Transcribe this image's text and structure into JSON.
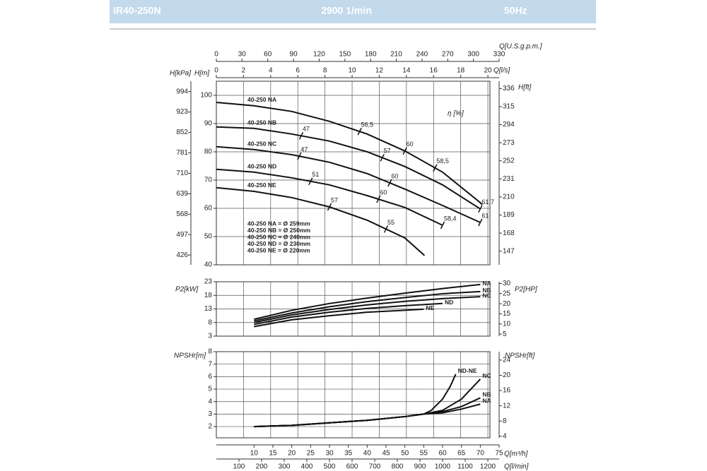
{
  "header": {
    "model": "IR40-250N",
    "speed": "2900 1/min",
    "frequency": "50Hz"
  },
  "q_axes": [
    {
      "label": "Q[U.S.g.p.m.]",
      "lim": [
        0,
        330
      ],
      "ticks": [
        0,
        30,
        60,
        90,
        120,
        150,
        180,
        210,
        240,
        270,
        300,
        330
      ]
    },
    {
      "label": "Q[l/s]",
      "lim": [
        0,
        20.83
      ],
      "ticks": [
        0,
        2,
        4,
        6,
        8,
        10,
        12,
        14,
        16,
        18,
        20
      ]
    },
    {
      "label": "Q[m³/h]",
      "lim": [
        0,
        75
      ],
      "ticks": [
        10,
        15,
        20,
        25,
        30,
        35,
        40,
        45,
        50,
        55,
        60,
        65,
        70,
        75
      ]
    },
    {
      "label": "Q[l/min]",
      "lim": [
        0,
        1250
      ],
      "ticks": [
        100,
        200,
        300,
        400,
        500,
        600,
        700,
        800,
        900,
        1000,
        1100,
        1200
      ]
    }
  ],
  "chart_data": [
    {
      "type": "line",
      "xlim": [
        0,
        75
      ],
      "grid": true,
      "annotation": "η [%]",
      "y_axes": [
        {
          "label": "H[kPa]",
          "lim": [
            392,
            1030
          ],
          "ticks": [
            426,
            497,
            568,
            639,
            710,
            781,
            852,
            923,
            994
          ]
        },
        {
          "label": "H[m]",
          "lim": [
            40,
            105
          ],
          "ticks": [
            40,
            50,
            60,
            70,
            80,
            90,
            100
          ]
        },
        {
          "label": "H[ft]",
          "lim": [
            131.2,
            344.5
          ],
          "ticks": [
            147,
            168,
            189,
            210,
            231,
            252,
            273,
            294,
            315,
            336
          ]
        }
      ],
      "series": [
        {
          "name": "40-250 NA",
          "note": "40-250 NA = Ø 259mm",
          "color": "#111",
          "axis": 1,
          "x": [
            0,
            10,
            20,
            30,
            40,
            50,
            60,
            70,
            70.5
          ],
          "values": [
            97.5,
            96.3,
            94.3,
            90.8,
            86.3,
            80.3,
            72.8,
            62,
            61.3
          ],
          "eta": {
            "x": [
              38,
              50,
              58
            ],
            "values": [
              56.5,
              60,
              58.5
            ],
            "value_labels": [
              "56,5",
              "60",
              "58,5"
            ]
          }
        },
        {
          "name": "40-250 NB",
          "note": "40-250 NB = Ø 250mm",
          "color": "#111",
          "axis": 1,
          "x": [
            0,
            10,
            20,
            30,
            40,
            50,
            60,
            70
          ],
          "values": [
            88.8,
            88.3,
            86.3,
            83.8,
            80,
            74.8,
            68.3,
            59.8
          ],
          "eta": {
            "x": [
              22.5,
              44,
              70
            ],
            "values": [
              47,
              57,
              61.7
            ],
            "value_labels": [
              "47",
              "57",
              "61,7"
            ]
          }
        },
        {
          "name": "40-250 NC",
          "note": "40-250 NC = Ø 240mm",
          "color": "#111",
          "axis": 1,
          "x": [
            0,
            10,
            20,
            30,
            40,
            50,
            60,
            70
          ],
          "values": [
            81.8,
            80.8,
            79,
            76.3,
            72.3,
            66.8,
            61,
            55
          ],
          "eta": {
            "x": [
              22,
              46,
              70
            ],
            "values": [
              47,
              60,
              61
            ],
            "value_labels": [
              "47",
              "60",
              "61"
            ]
          }
        },
        {
          "name": "40-250 ND",
          "note": "40-250 ND = Ø 230mm",
          "color": "#111",
          "axis": 1,
          "x": [
            0,
            10,
            20,
            30,
            40,
            50,
            60
          ],
          "values": [
            73.8,
            72.8,
            70.8,
            68.3,
            64.5,
            60.3,
            54
          ],
          "eta": {
            "x": [
              25,
              43,
              60
            ],
            "values": [
              51,
              60,
              58.4
            ],
            "value_labels": [
              "51",
              "60",
              "58,4"
            ]
          }
        },
        {
          "name": "40-250 NE",
          "note": "40-250 NE = Ø 220mm",
          "color": "#111",
          "axis": 1,
          "x": [
            0,
            10,
            20,
            30,
            40,
            50,
            55.2
          ],
          "values": [
            67.3,
            66,
            63.8,
            60.5,
            55.8,
            49.5,
            43.3
          ],
          "eta": {
            "x": [
              30,
              45
            ],
            "values": [
              57,
              55
            ],
            "value_labels": [
              "57",
              "55"
            ]
          }
        }
      ]
    },
    {
      "type": "line",
      "xlim": [
        0,
        75
      ],
      "grid": true,
      "y_axes": [
        {
          "label": "P2[kW]",
          "lim": [
            3,
            23
          ],
          "ticks": [
            3,
            8,
            13,
            18,
            23
          ]
        },
        {
          "label": "P2[HP]",
          "lim": [
            4.02,
            30.84
          ],
          "ticks": [
            5,
            10,
            15,
            20,
            25,
            30
          ]
        }
      ],
      "series": [
        {
          "name": "NA",
          "color": "#111",
          "axis": 0,
          "x": [
            10,
            20,
            30,
            40,
            50,
            60,
            70
          ],
          "values": [
            9.2,
            12.5,
            15,
            17,
            18.8,
            20.5,
            22
          ]
        },
        {
          "name": "NB",
          "color": "#111",
          "axis": 0,
          "x": [
            10,
            20,
            30,
            40,
            50,
            60,
            70
          ],
          "values": [
            8.6,
            11.5,
            13.8,
            15.7,
            17.2,
            18.6,
            19.4
          ]
        },
        {
          "name": "NC",
          "color": "#111",
          "axis": 0,
          "x": [
            10,
            20,
            30,
            40,
            50,
            60,
            70
          ],
          "values": [
            8,
            10.8,
            12.8,
            14.5,
            15.8,
            16.8,
            17.5
          ]
        },
        {
          "name": "ND",
          "color": "#111",
          "axis": 0,
          "x": [
            10,
            20,
            30,
            40,
            50,
            60
          ],
          "values": [
            7.3,
            10,
            11.8,
            13.2,
            14.2,
            15
          ]
        },
        {
          "name": "NE",
          "color": "#111",
          "axis": 0,
          "x": [
            10,
            20,
            30,
            40,
            50,
            55
          ],
          "values": [
            6.5,
            9,
            10.5,
            11.8,
            12.5,
            12.9
          ]
        }
      ]
    },
    {
      "type": "line",
      "xlim": [
        0,
        75
      ],
      "grid": true,
      "y_axes": [
        {
          "label": "NPSHr[m]",
          "lim": [
            1.1,
            8
          ],
          "ticks": [
            2,
            3,
            4,
            5,
            6,
            7,
            8
          ]
        },
        {
          "label": "NPSHr[ft]",
          "lim": [
            3.6,
            26.2
          ],
          "ticks": [
            4,
            8,
            12,
            16,
            20,
            24
          ]
        }
      ],
      "series": [
        {
          "name": "ND-NE",
          "color": "#111",
          "axis": 0,
          "x": [
            10,
            20,
            30,
            40,
            50,
            55,
            57,
            60,
            62,
            63.5
          ],
          "values": [
            2,
            2.1,
            2.3,
            2.5,
            2.8,
            3,
            3.3,
            4.2,
            5.2,
            6.2
          ]
        },
        {
          "name": "NC",
          "color": "#111",
          "axis": 0,
          "x": [
            10,
            20,
            30,
            40,
            50,
            55,
            60,
            65,
            70
          ],
          "values": [
            2,
            2.1,
            2.3,
            2.5,
            2.8,
            3,
            3.3,
            4.2,
            5.8
          ]
        },
        {
          "name": "NB",
          "color": "#111",
          "axis": 0,
          "x": [
            10,
            20,
            30,
            40,
            50,
            55,
            60,
            65,
            70
          ],
          "values": [
            2,
            2.1,
            2.3,
            2.5,
            2.8,
            3,
            3.2,
            3.6,
            4.3
          ]
        },
        {
          "name": "NA",
          "color": "#111",
          "axis": 0,
          "x": [
            10,
            20,
            30,
            40,
            50,
            55,
            60,
            65,
            70
          ],
          "values": [
            2,
            2.1,
            2.3,
            2.5,
            2.8,
            3,
            3.1,
            3.4,
            3.8
          ]
        }
      ]
    }
  ]
}
